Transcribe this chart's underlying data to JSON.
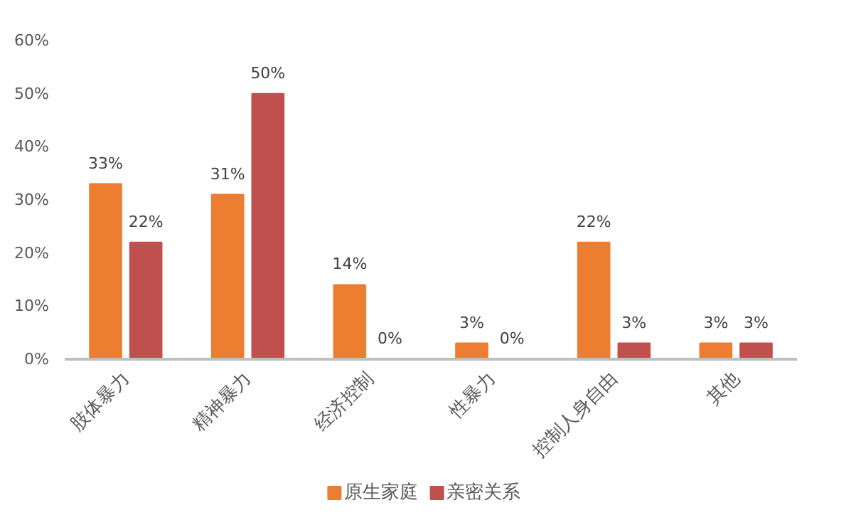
{
  "chart_data": {
    "type": "bar",
    "categories": [
      "肢体暴力",
      "精神暴力",
      "经济控制",
      "性暴力",
      "控制人身自由",
      "其他"
    ],
    "series": [
      {
        "name": "原生家庭",
        "color": "#ed7d31",
        "values": [
          33,
          31,
          14,
          3,
          22,
          3
        ],
        "value_labels": [
          "33%",
          "31%",
          "14%",
          "3%",
          "22%",
          "3%"
        ]
      },
      {
        "name": "亲密关系",
        "color": "#c0504d",
        "values": [
          22,
          50,
          0,
          0,
          3,
          3
        ],
        "value_labels": [
          "22%",
          "50%",
          "0%",
          "0%",
          "3%",
          "3%"
        ]
      }
    ],
    "ylim": [
      0,
      60
    ],
    "yticks": [
      {
        "value": 0,
        "label": "0%"
      },
      {
        "value": 10,
        "label": "10%"
      },
      {
        "value": 20,
        "label": "20%"
      },
      {
        "value": 30,
        "label": "30%"
      },
      {
        "value": 40,
        "label": "40%"
      },
      {
        "value": 50,
        "label": "50%"
      },
      {
        "value": 60,
        "label": "60%"
      }
    ],
    "grid": false,
    "legend": "bottom"
  }
}
